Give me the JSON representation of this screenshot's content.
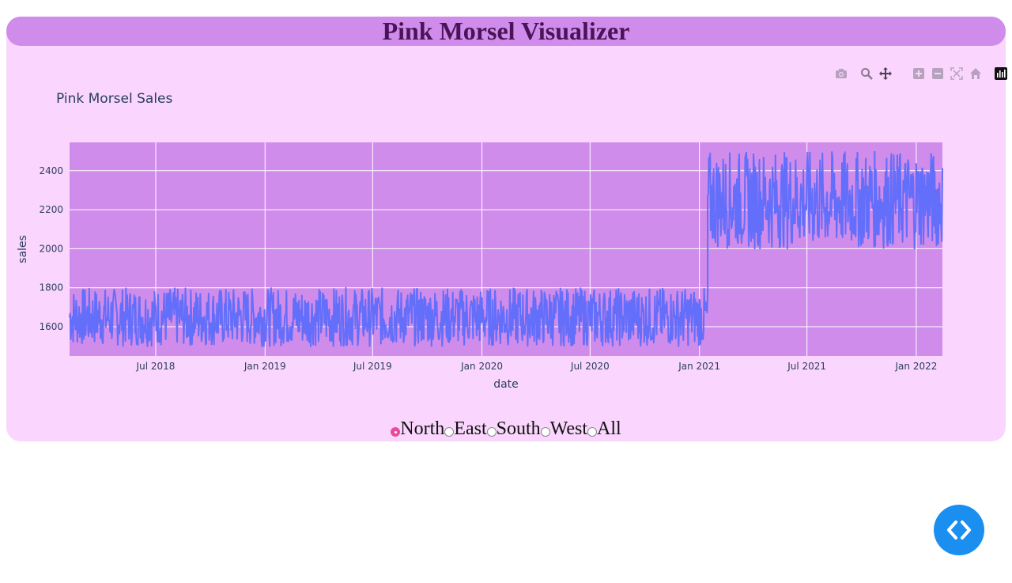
{
  "app": {
    "title": "Pink Morsel Visualizer"
  },
  "modebar": {
    "icons": [
      "camera-icon",
      "zoom-icon",
      "pan-icon",
      "zoom-in-icon",
      "zoom-out-icon",
      "autoscale-icon",
      "reset-axes-icon",
      "plotly-logo-icon"
    ]
  },
  "region_selector": {
    "options": [
      "North",
      "East",
      "South",
      "West",
      "All"
    ],
    "selected": "North"
  },
  "colors": {
    "accent": "#d08ceb",
    "background": "#fad5fd",
    "line": "#636efa",
    "header_text": "#4a1358",
    "radio_checked": "#e64d9a",
    "fab": "#1a8ff0"
  },
  "fab": {
    "icon": "code-brackets-icon"
  },
  "chart_data": {
    "type": "line",
    "title": "Pink Morsel Sales",
    "xlabel": "date",
    "ylabel": "sales",
    "x_range": [
      "2018-02-06",
      "2022-02-14"
    ],
    "ylim": [
      1450,
      2545
    ],
    "xticks": [
      "Jul 2018",
      "Jan 2019",
      "Jul 2019",
      "Jan 2020",
      "Jul 2020",
      "Jan 2021",
      "Jul 2021",
      "Jan 2022"
    ],
    "xtick_dates": [
      "2018-07-01",
      "2019-01-01",
      "2019-07-01",
      "2020-01-01",
      "2020-07-01",
      "2021-01-01",
      "2021-07-01",
      "2022-01-01"
    ],
    "yticks": [
      1600,
      1800,
      2000,
      2200,
      2400
    ],
    "grid": true,
    "series": [
      {
        "segments": [
          {
            "from": "2018-02-06",
            "to": "2021-01-15",
            "min": 1500,
            "max": 1800
          },
          {
            "from": "2021-01-15",
            "to": "2022-02-14",
            "min": 2000,
            "max": 2500
          }
        ]
      }
    ]
  }
}
